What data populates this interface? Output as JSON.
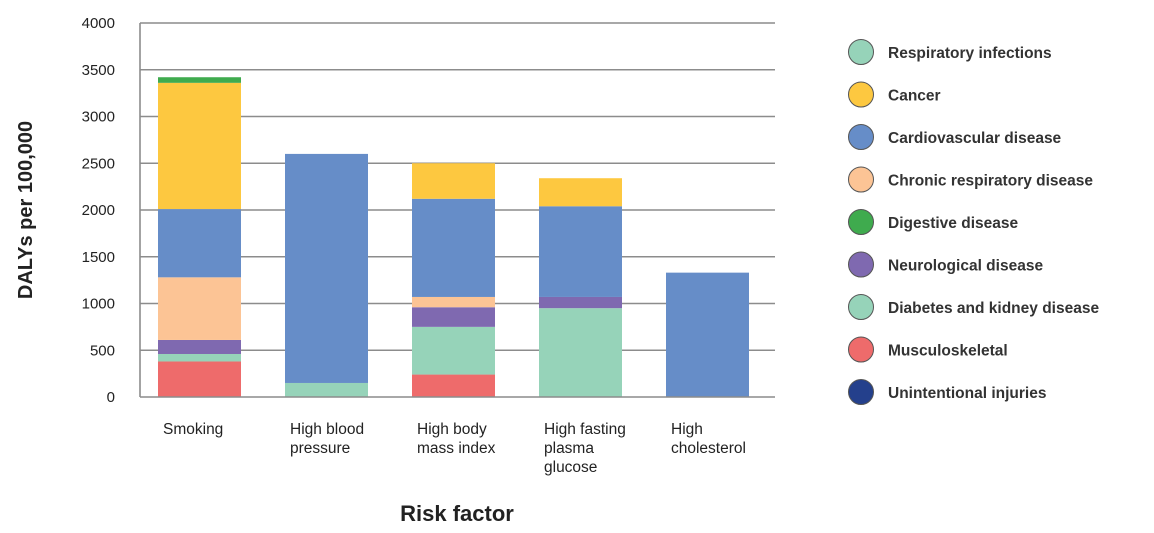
{
  "chart_data": {
    "type": "bar",
    "stacked": true,
    "title": "",
    "xlabel": "Risk factor",
    "ylabel": "DALYs per 100,000",
    "ylim": [
      0,
      4000
    ],
    "yticks": [
      0,
      500,
      1000,
      1500,
      2000,
      2500,
      3000,
      3500,
      4000
    ],
    "grid": true,
    "legend_position": "right",
    "categories": [
      [
        "Smoking"
      ],
      [
        "High blood",
        "pressure"
      ],
      [
        "High body",
        "mass index"
      ],
      [
        "High fasting",
        "plasma",
        "glucose"
      ],
      [
        "High",
        "cholesterol"
      ]
    ],
    "series": [
      {
        "name": "Respiratory infections",
        "color": "#96d3b9",
        "values": [
          0,
          0,
          0,
          0,
          0
        ]
      },
      {
        "name": "Cancer",
        "color": "#fdc840",
        "values": [
          1350,
          0,
          380,
          300,
          0
        ]
      },
      {
        "name": "Cardiovascular disease",
        "color": "#668dc8",
        "values": [
          730,
          2450,
          1050,
          970,
          1330
        ]
      },
      {
        "name": "Chronic respiratory disease",
        "color": "#fcc495",
        "values": [
          670,
          0,
          110,
          0,
          0
        ]
      },
      {
        "name": "Digestive disease",
        "color": "#3fab4e",
        "values": [
          60,
          0,
          0,
          0,
          0
        ]
      },
      {
        "name": "Neurological disease",
        "color": "#7f69b0",
        "values": [
          150,
          0,
          210,
          120,
          0
        ]
      },
      {
        "name": "Diabetes and kidney disease",
        "color": "#96d3b9",
        "values": [
          80,
          150,
          510,
          950,
          0
        ]
      },
      {
        "name": "Musculoskeletal",
        "color": "#ee6b6b",
        "values": [
          380,
          0,
          240,
          0,
          0
        ]
      },
      {
        "name": "Unintentional injuries",
        "color": "#24408c",
        "values": [
          0,
          0,
          0,
          0,
          0
        ]
      }
    ],
    "stack_order": [
      "Musculoskeletal",
      "Diabetes and kidney disease",
      "Neurological disease",
      "Chronic respiratory disease",
      "Cardiovascular disease",
      "Cancer",
      "Digestive disease",
      "Respiratory infections",
      "Unintentional injuries"
    ]
  }
}
